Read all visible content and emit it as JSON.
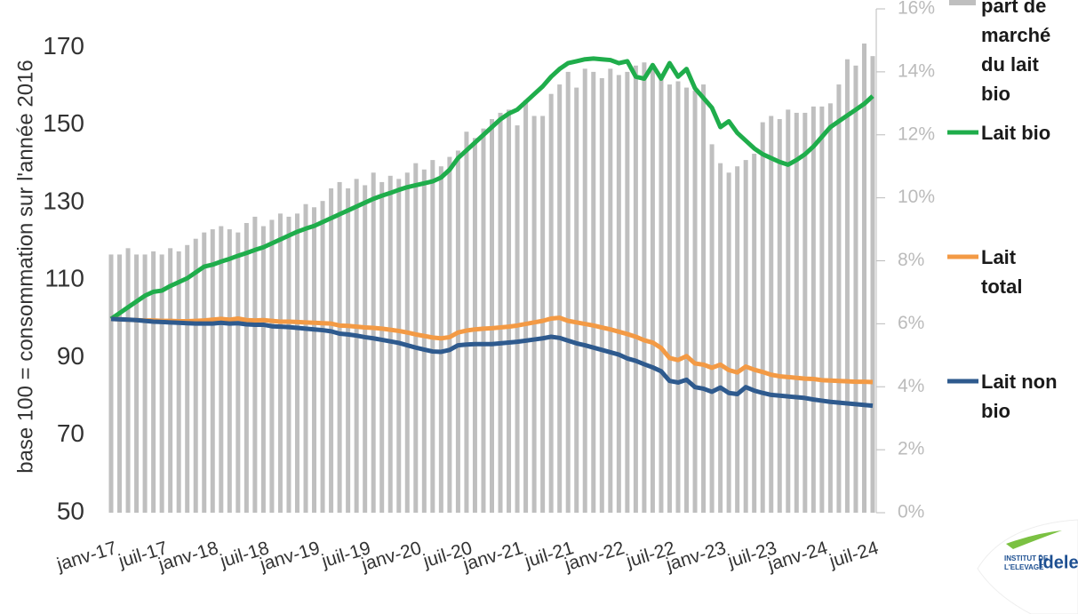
{
  "chart_data": {
    "type": "combo",
    "y_label": "base 100 = consommation sur l'année 2016",
    "categories": [
      "janv-17",
      null,
      null,
      null,
      null,
      null,
      "juil-17",
      null,
      null,
      null,
      null,
      null,
      "janv-18",
      null,
      null,
      null,
      null,
      null,
      "juil-18",
      null,
      null,
      null,
      null,
      null,
      "janv-19",
      null,
      null,
      null,
      null,
      null,
      "juil-19",
      null,
      null,
      null,
      null,
      null,
      "janv-20",
      null,
      null,
      null,
      null,
      null,
      "juil-20",
      null,
      null,
      null,
      null,
      null,
      "janv-21",
      null,
      null,
      null,
      null,
      null,
      "juil-21",
      null,
      null,
      null,
      null,
      null,
      "janv-22",
      null,
      null,
      null,
      null,
      null,
      "juil-22",
      null,
      null,
      null,
      null,
      null,
      "janv-23",
      null,
      null,
      null,
      null,
      null,
      "juil-23",
      null,
      null,
      null,
      null,
      null,
      "janv-24",
      null,
      null,
      null,
      null,
      null,
      "juil-24"
    ],
    "ylim": [
      50,
      180
    ],
    "yticks": [
      50,
      70,
      90,
      110,
      130,
      150,
      170
    ],
    "y2lim": [
      0,
      16
    ],
    "y2ticks": [
      {
        "value": 0,
        "label": "0%"
      },
      {
        "value": 2,
        "label": "2%"
      },
      {
        "value": 4,
        "label": "4%"
      },
      {
        "value": 6,
        "label": "6%"
      },
      {
        "value": 8,
        "label": "8%"
      },
      {
        "value": 10,
        "label": "10%"
      },
      {
        "value": 12,
        "label": "12%"
      },
      {
        "value": 14,
        "label": "14%"
      },
      {
        "value": 16,
        "label": "16%"
      }
    ],
    "series": [
      {
        "name": "part de marché du lait bio",
        "type": "bar",
        "axis": "y2",
        "color": "#bfbfbf",
        "values": [
          8.2,
          8.2,
          8.4,
          8.2,
          8.2,
          8.3,
          8.2,
          8.4,
          8.3,
          8.5,
          8.7,
          8.9,
          9.0,
          9.1,
          9.0,
          8.9,
          9.2,
          9.4,
          9.1,
          9.3,
          9.5,
          9.4,
          9.5,
          9.8,
          9.7,
          9.9,
          10.3,
          10.5,
          10.3,
          10.6,
          10.4,
          10.8,
          10.5,
          10.7,
          10.6,
          10.8,
          11.1,
          10.9,
          11.2,
          11.0,
          11.3,
          11.5,
          12.1,
          11.9,
          12.2,
          12.5,
          12.7,
          12.8,
          12.3,
          13.1,
          12.6,
          12.6,
          13.3,
          13.6,
          14.0,
          13.5,
          14.1,
          14.0,
          13.8,
          14.1,
          13.9,
          14.0,
          14.2,
          14.3,
          14.1,
          13.9,
          13.6,
          13.7,
          13.5,
          13.4,
          13.6,
          11.7,
          11.1,
          10.8,
          11.0,
          11.2,
          11.4,
          12.4,
          12.6,
          12.5,
          12.8,
          12.7,
          12.7,
          12.9,
          12.9,
          13.0,
          13.6,
          14.4,
          14.2,
          14.9,
          14.5
        ]
      },
      {
        "name": "Lait bio",
        "type": "line",
        "color": "#1fad4b",
        "values": [
          100,
          101.5,
          103,
          104.5,
          106,
          107,
          107.3,
          108.5,
          109.5,
          110.5,
          112,
          113.5,
          114,
          114.8,
          115.5,
          116.3,
          117,
          117.8,
          118.5,
          119.5,
          120.5,
          121.5,
          122.5,
          123.3,
          124,
          125,
          126,
          127,
          128,
          129,
          130,
          131,
          131.8,
          132.5,
          133.3,
          134,
          134.5,
          135,
          135.5,
          136.5,
          138.5,
          141.5,
          143.5,
          145.5,
          147.5,
          149.5,
          151.5,
          153,
          154,
          156,
          158,
          160,
          162.5,
          164.5,
          166,
          166.5,
          167,
          167.2,
          167,
          166.8,
          166,
          166.5,
          162.5,
          162,
          165.5,
          162,
          166,
          162.5,
          164.5,
          159.5,
          157,
          154.5,
          149.5,
          151,
          148,
          146,
          144,
          142.5,
          141.5,
          140.5,
          139.8,
          141,
          142.5,
          144.5,
          147,
          149.5,
          151,
          152.5,
          154,
          155.5,
          157.5
        ]
      },
      {
        "name": "Lait total",
        "type": "line",
        "color": "#f39a45",
        "values": [
          100,
          99.9,
          99.8,
          99.7,
          99.6,
          99.6,
          99.5,
          99.5,
          99.4,
          99.4,
          99.5,
          99.6,
          99.8,
          100,
          99.8,
          100.1,
          99.7,
          99.6,
          99.7,
          99.5,
          99.3,
          99.3,
          99.2,
          99.1,
          99.0,
          98.9,
          98.8,
          98.3,
          98.2,
          98.0,
          97.8,
          97.7,
          97.5,
          97.2,
          96.9,
          96.5,
          96.0,
          95.6,
          95.2,
          95.0,
          95.3,
          96.5,
          97.0,
          97.3,
          97.5,
          97.6,
          97.8,
          98.0,
          98.3,
          98.7,
          99.1,
          99.5,
          100.1,
          100.3,
          99.5,
          99.1,
          98.7,
          98.3,
          97.8,
          97.3,
          96.7,
          96.1,
          95.4,
          94.5,
          93.9,
          92.5,
          89.9,
          89.4,
          90.4,
          88.5,
          88.2,
          87.4,
          88.2,
          86.8,
          86.2,
          87.7,
          86.9,
          86.3,
          85.6,
          85.2,
          85.0,
          84.8,
          84.6,
          84.5,
          84.2,
          84.1,
          84.0,
          83.9,
          83.8,
          83.8,
          83.7
        ]
      },
      {
        "name": "Lait non bio",
        "type": "line",
        "color": "#2e5a8e",
        "values": [
          100,
          99.9,
          99.8,
          99.7,
          99.5,
          99.3,
          99.2,
          99.1,
          99.0,
          98.9,
          98.8,
          98.8,
          98.8,
          99.0,
          98.8,
          98.9,
          98.6,
          98.5,
          98.5,
          98.1,
          98.0,
          97.9,
          97.7,
          97.5,
          97.3,
          97.1,
          96.8,
          96.2,
          96.0,
          95.7,
          95.3,
          95.0,
          94.6,
          94.2,
          93.8,
          93.2,
          92.6,
          92.1,
          91.6,
          91.5,
          92.0,
          93.2,
          93.4,
          93.5,
          93.5,
          93.5,
          93.7,
          93.9,
          94.1,
          94.4,
          94.7,
          95.0,
          95.4,
          95.1,
          94.4,
          93.7,
          93.2,
          92.6,
          92.0,
          91.4,
          90.8,
          89.8,
          89.2,
          88.3,
          87.5,
          86.5,
          84.0,
          83.6,
          84.3,
          82.4,
          82.0,
          81.2,
          82.3,
          80.9,
          80.6,
          82.4,
          81.5,
          80.9,
          80.4,
          80.2,
          80.0,
          79.8,
          79.6,
          79.2,
          78.9,
          78.6,
          78.4,
          78.2,
          78.0,
          77.8,
          77.6
        ]
      }
    ]
  },
  "logo": {
    "line1": "INSTITUT DE",
    "line2": "L'ELEVAGE",
    "brand": "idele"
  }
}
